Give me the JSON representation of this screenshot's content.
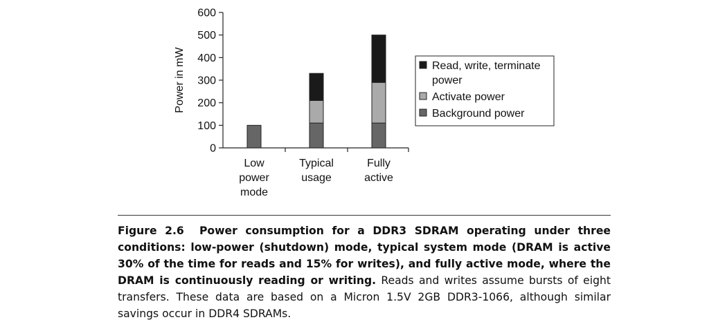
{
  "chart_data": {
    "type": "bar",
    "stacked": true,
    "ylabel": "Power in mW",
    "xlabel": "",
    "ylim": [
      0,
      600
    ],
    "yticks": [
      0,
      100,
      200,
      300,
      400,
      500,
      600
    ],
    "categories": [
      [
        "Low",
        "power",
        "mode"
      ],
      [
        "Typical",
        "usage"
      ],
      [
        "Fully",
        "active"
      ]
    ],
    "series": [
      {
        "name": "Background power",
        "color": "#666666",
        "values": [
          100,
          110,
          110
        ]
      },
      {
        "name": "Activate power",
        "color": "#aaaaaa",
        "values": [
          0,
          100,
          180
        ]
      },
      {
        "name": "Read, write, terminate power",
        "color": "#1a1a1a",
        "values": [
          0,
          120,
          210
        ]
      }
    ],
    "legend": {
      "placement": "right",
      "entries": [
        {
          "lines": [
            "Read, write, terminate",
            "power"
          ],
          "color": "#1a1a1a"
        },
        {
          "lines": [
            "Activate power"
          ],
          "color": "#aaaaaa"
        },
        {
          "lines": [
            "Background power"
          ],
          "color": "#666666"
        }
      ]
    },
    "grid": false
  },
  "caption": {
    "label": "Figure 2.6",
    "bold_text": "Power consumption for a DDR3 SDRAM operating under three conditions: low-power (shutdown) mode, typical system mode (DRAM is active 30% of the time for reads and 15% for writes), and fully active mode, where the DRAM is continuously reading or writing.",
    "normal_text": "Reads and writes assume bursts of eight transfers. These data are based on a Micron 1.5V 2GB DDR3-1066, although similar savings occur in DDR4 SDRAMs."
  }
}
